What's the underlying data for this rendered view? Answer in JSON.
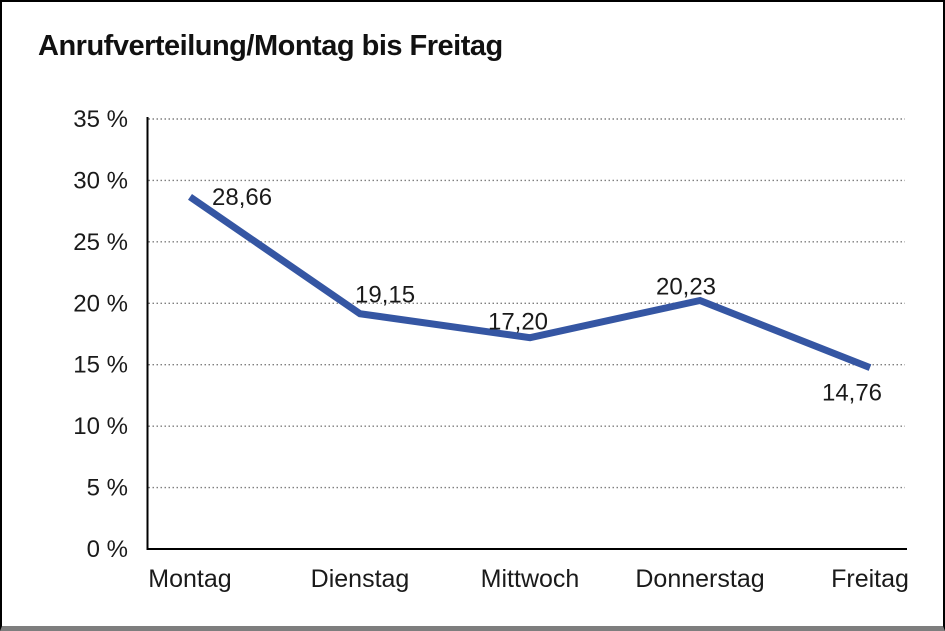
{
  "title": "Anrufverteilung/Montag bis Freitag",
  "frame": {
    "background": "#ffffff",
    "border_color": "#000000",
    "bottom_edge_color": "#7e7e7e"
  },
  "chart_data": {
    "type": "line",
    "title": "Anrufverteilung/Montag bis Freitag",
    "categories": [
      "Montag",
      "Dienstag",
      "Mittwoch",
      "Donnerstag",
      "Freitag"
    ],
    "values": [
      28.66,
      19.15,
      17.2,
      20.23,
      14.76
    ],
    "point_labels": [
      "28,66",
      "19,15",
      "17,20",
      "20,23",
      "14,76"
    ],
    "series_name": "Anrufverteilung",
    "xlabel": "",
    "ylabel": "",
    "ylim": [
      0,
      35
    ],
    "y_tick_step": 5,
    "y_tick_labels": [
      "0 %",
      "5 %",
      "10 %",
      "15 %",
      "20 %",
      "25 %",
      "30 %",
      "35 %"
    ],
    "grid": "horizontal-dotted",
    "legend": "none",
    "line_color": "#3556a3",
    "line_width": 7,
    "gridline_color": "#7f7f7f",
    "axis_color": "#000000",
    "text_color": "#1a1a1a"
  }
}
